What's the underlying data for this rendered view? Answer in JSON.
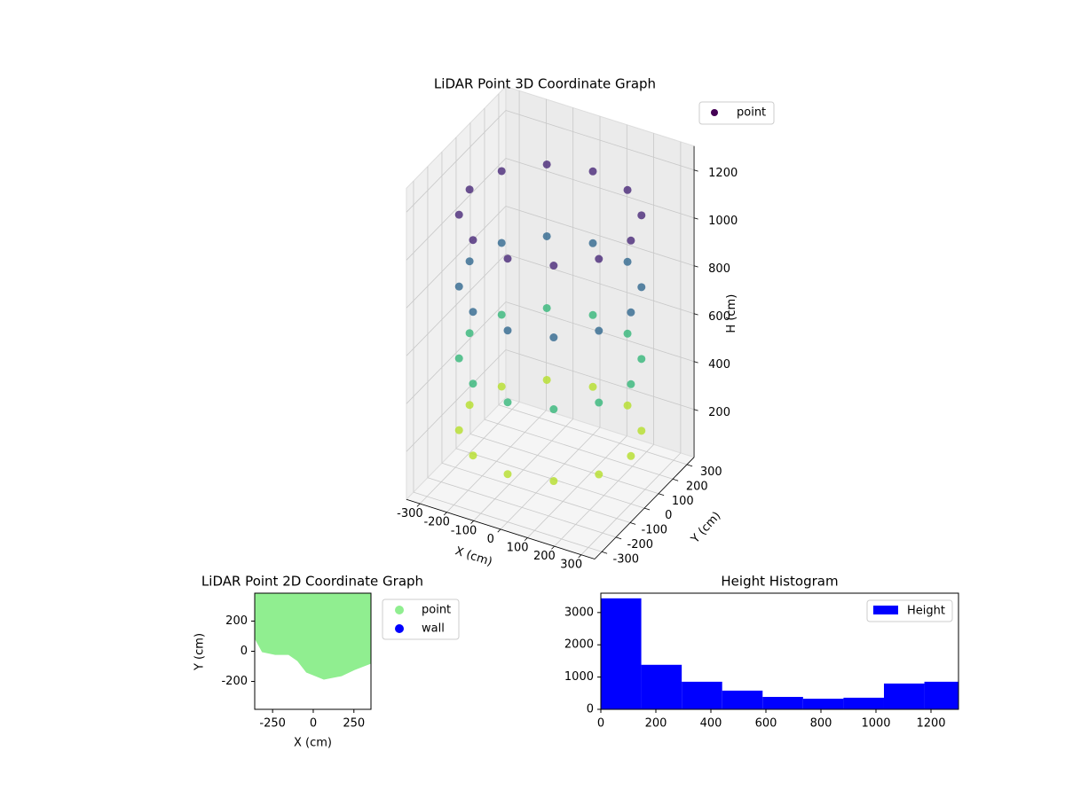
{
  "chart_data": [
    {
      "type": "scatter3d",
      "title": "LiDAR Point 3D Coordinate Graph",
      "xlabel": "X (cm)",
      "ylabel": "Y (cm)",
      "zlabel": "H (cm)",
      "colormap": "viridis_r",
      "legend": "upper right",
      "xlim": [
        -350,
        350
      ],
      "ylim": [
        -350,
        350
      ],
      "zlim": [
        0,
        1300
      ],
      "xticks": [
        -300,
        -200,
        -100,
        0,
        100,
        200,
        300
      ],
      "yticks": [
        -300,
        -200,
        -100,
        0,
        100,
        200,
        300
      ],
      "zticks": [
        200,
        400,
        600,
        800,
        1000,
        1200
      ],
      "series": [
        {
          "name": "point",
          "color": "#440154",
          "x": [
            300,
            260,
            150,
            0,
            -150,
            -260,
            -300,
            -260,
            -150,
            0,
            150,
            260,
            300,
            260,
            150,
            0,
            -150,
            -260,
            -300,
            -260,
            -150,
            0,
            150,
            260,
            300,
            260,
            150,
            0,
            -150,
            -260,
            -300,
            -260,
            -150,
            0,
            150,
            260,
            300,
            260,
            150,
            0,
            -150,
            -260,
            -300,
            -260,
            -150,
            0,
            150,
            260
          ],
          "y": [
            0,
            150,
            260,
            300,
            260,
            150,
            0,
            -150,
            -260,
            -300,
            -260,
            -150,
            0,
            150,
            260,
            300,
            260,
            150,
            0,
            -150,
            -260,
            -300,
            -260,
            -150,
            0,
            150,
            260,
            300,
            260,
            150,
            0,
            -150,
            -260,
            -300,
            -260,
            -150,
            0,
            150,
            260,
            300,
            260,
            150,
            0,
            -150,
            -260,
            -300,
            -260,
            -150
          ],
          "z": [
            200,
            200,
            200,
            200,
            200,
            200,
            200,
            200,
            200,
            200,
            200,
            200,
            500,
            500,
            500,
            500,
            500,
            500,
            500,
            500,
            500,
            500,
            500,
            500,
            800,
            800,
            800,
            800,
            800,
            800,
            800,
            800,
            800,
            800,
            800,
            800,
            1100,
            1100,
            1100,
            1100,
            1100,
            1100,
            1100,
            1100,
            1100,
            1100,
            1100,
            1100
          ]
        }
      ]
    },
    {
      "type": "scatter",
      "title": "LiDAR Point 2D Coordinate Graph",
      "xlabel": "X (cm)",
      "ylabel": "Y (cm)",
      "legend": "outside right",
      "xlim": [
        -360,
        355
      ],
      "ylim": [
        -385,
        385
      ],
      "xticks": [
        -250,
        0,
        250
      ],
      "yticks": [
        -200,
        0,
        200
      ],
      "series": [
        {
          "name": "point",
          "color": "#90ee90",
          "x": [
            -360,
            -315,
            -234,
            -152,
            -98,
            -43,
            65,
            174,
            255,
            355
          ],
          "y": [
            82,
            -6,
            -24,
            -24,
            -65,
            -141,
            -188,
            -165,
            -124,
            -82
          ]
        },
        {
          "name": "wall",
          "color": "#0000ff",
          "x": [],
          "y": []
        }
      ]
    },
    {
      "type": "histogram",
      "title": "Height Histogram",
      "legend": "upper right",
      "bins": [
        0,
        147,
        294,
        441,
        588,
        735,
        882,
        1029,
        1176,
        1323
      ],
      "series": [
        {
          "name": "Height",
          "color": "#0000ff",
          "values": [
            3440,
            1380,
            855,
            580,
            385,
            330,
            360,
            800,
            855
          ]
        }
      ],
      "xlim": [
        0,
        1300
      ],
      "ylim": [
        0,
        3600
      ],
      "xticks": [
        0,
        200,
        400,
        600,
        800,
        1000,
        1200
      ],
      "yticks": [
        0,
        1000,
        2000,
        3000
      ]
    }
  ]
}
